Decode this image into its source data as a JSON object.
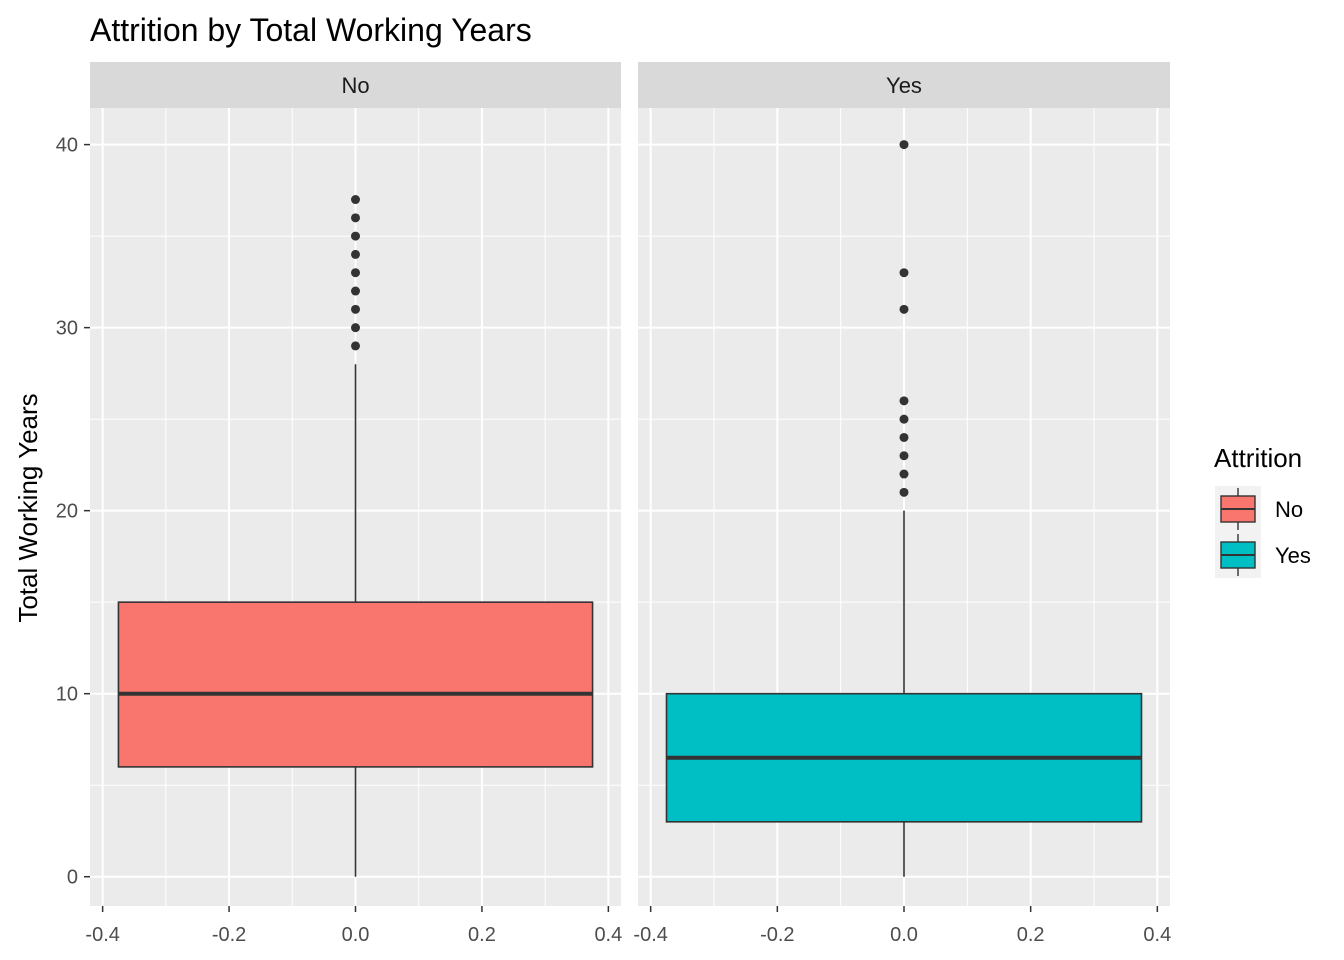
{
  "chart_data": {
    "type": "boxplot",
    "title": "Attrition by Total Working Years",
    "ylabel": "Total Working Years",
    "xlabel": "",
    "xlim": [
      -0.42,
      0.42
    ],
    "ylim": [
      -1.6,
      42.0
    ],
    "x_ticks": [
      "-0.4",
      "-0.2",
      "0.0",
      "0.2",
      "0.4"
    ],
    "x_tick_values": [
      -0.4,
      -0.2,
      0.0,
      0.2,
      0.4
    ],
    "y_ticks": [
      "0",
      "10",
      "20",
      "30",
      "40"
    ],
    "y_tick_values": [
      0,
      10,
      20,
      30,
      40
    ],
    "grid": true,
    "legend": {
      "title": "Attrition",
      "position": "right",
      "items": [
        {
          "label": "No",
          "color": "#F8766D"
        },
        {
          "label": "Yes",
          "color": "#00BFC4"
        }
      ]
    },
    "panels": [
      {
        "label": "No",
        "color": "#F8766D",
        "box_x_range": [
          -0.375,
          0.375
        ],
        "whisker_low": 0,
        "q1": 6,
        "median": 10,
        "q3": 15,
        "whisker_high": 28,
        "outliers": [
          29,
          30,
          31,
          32,
          33,
          34,
          35,
          36,
          37
        ]
      },
      {
        "label": "Yes",
        "color": "#00BFC4",
        "box_x_range": [
          -0.375,
          0.375
        ],
        "whisker_low": 0,
        "q1": 3,
        "median": 6.5,
        "q3": 10,
        "whisker_high": 20,
        "outliers": [
          21,
          22,
          23,
          24,
          25,
          26,
          31,
          33,
          40
        ]
      }
    ]
  }
}
